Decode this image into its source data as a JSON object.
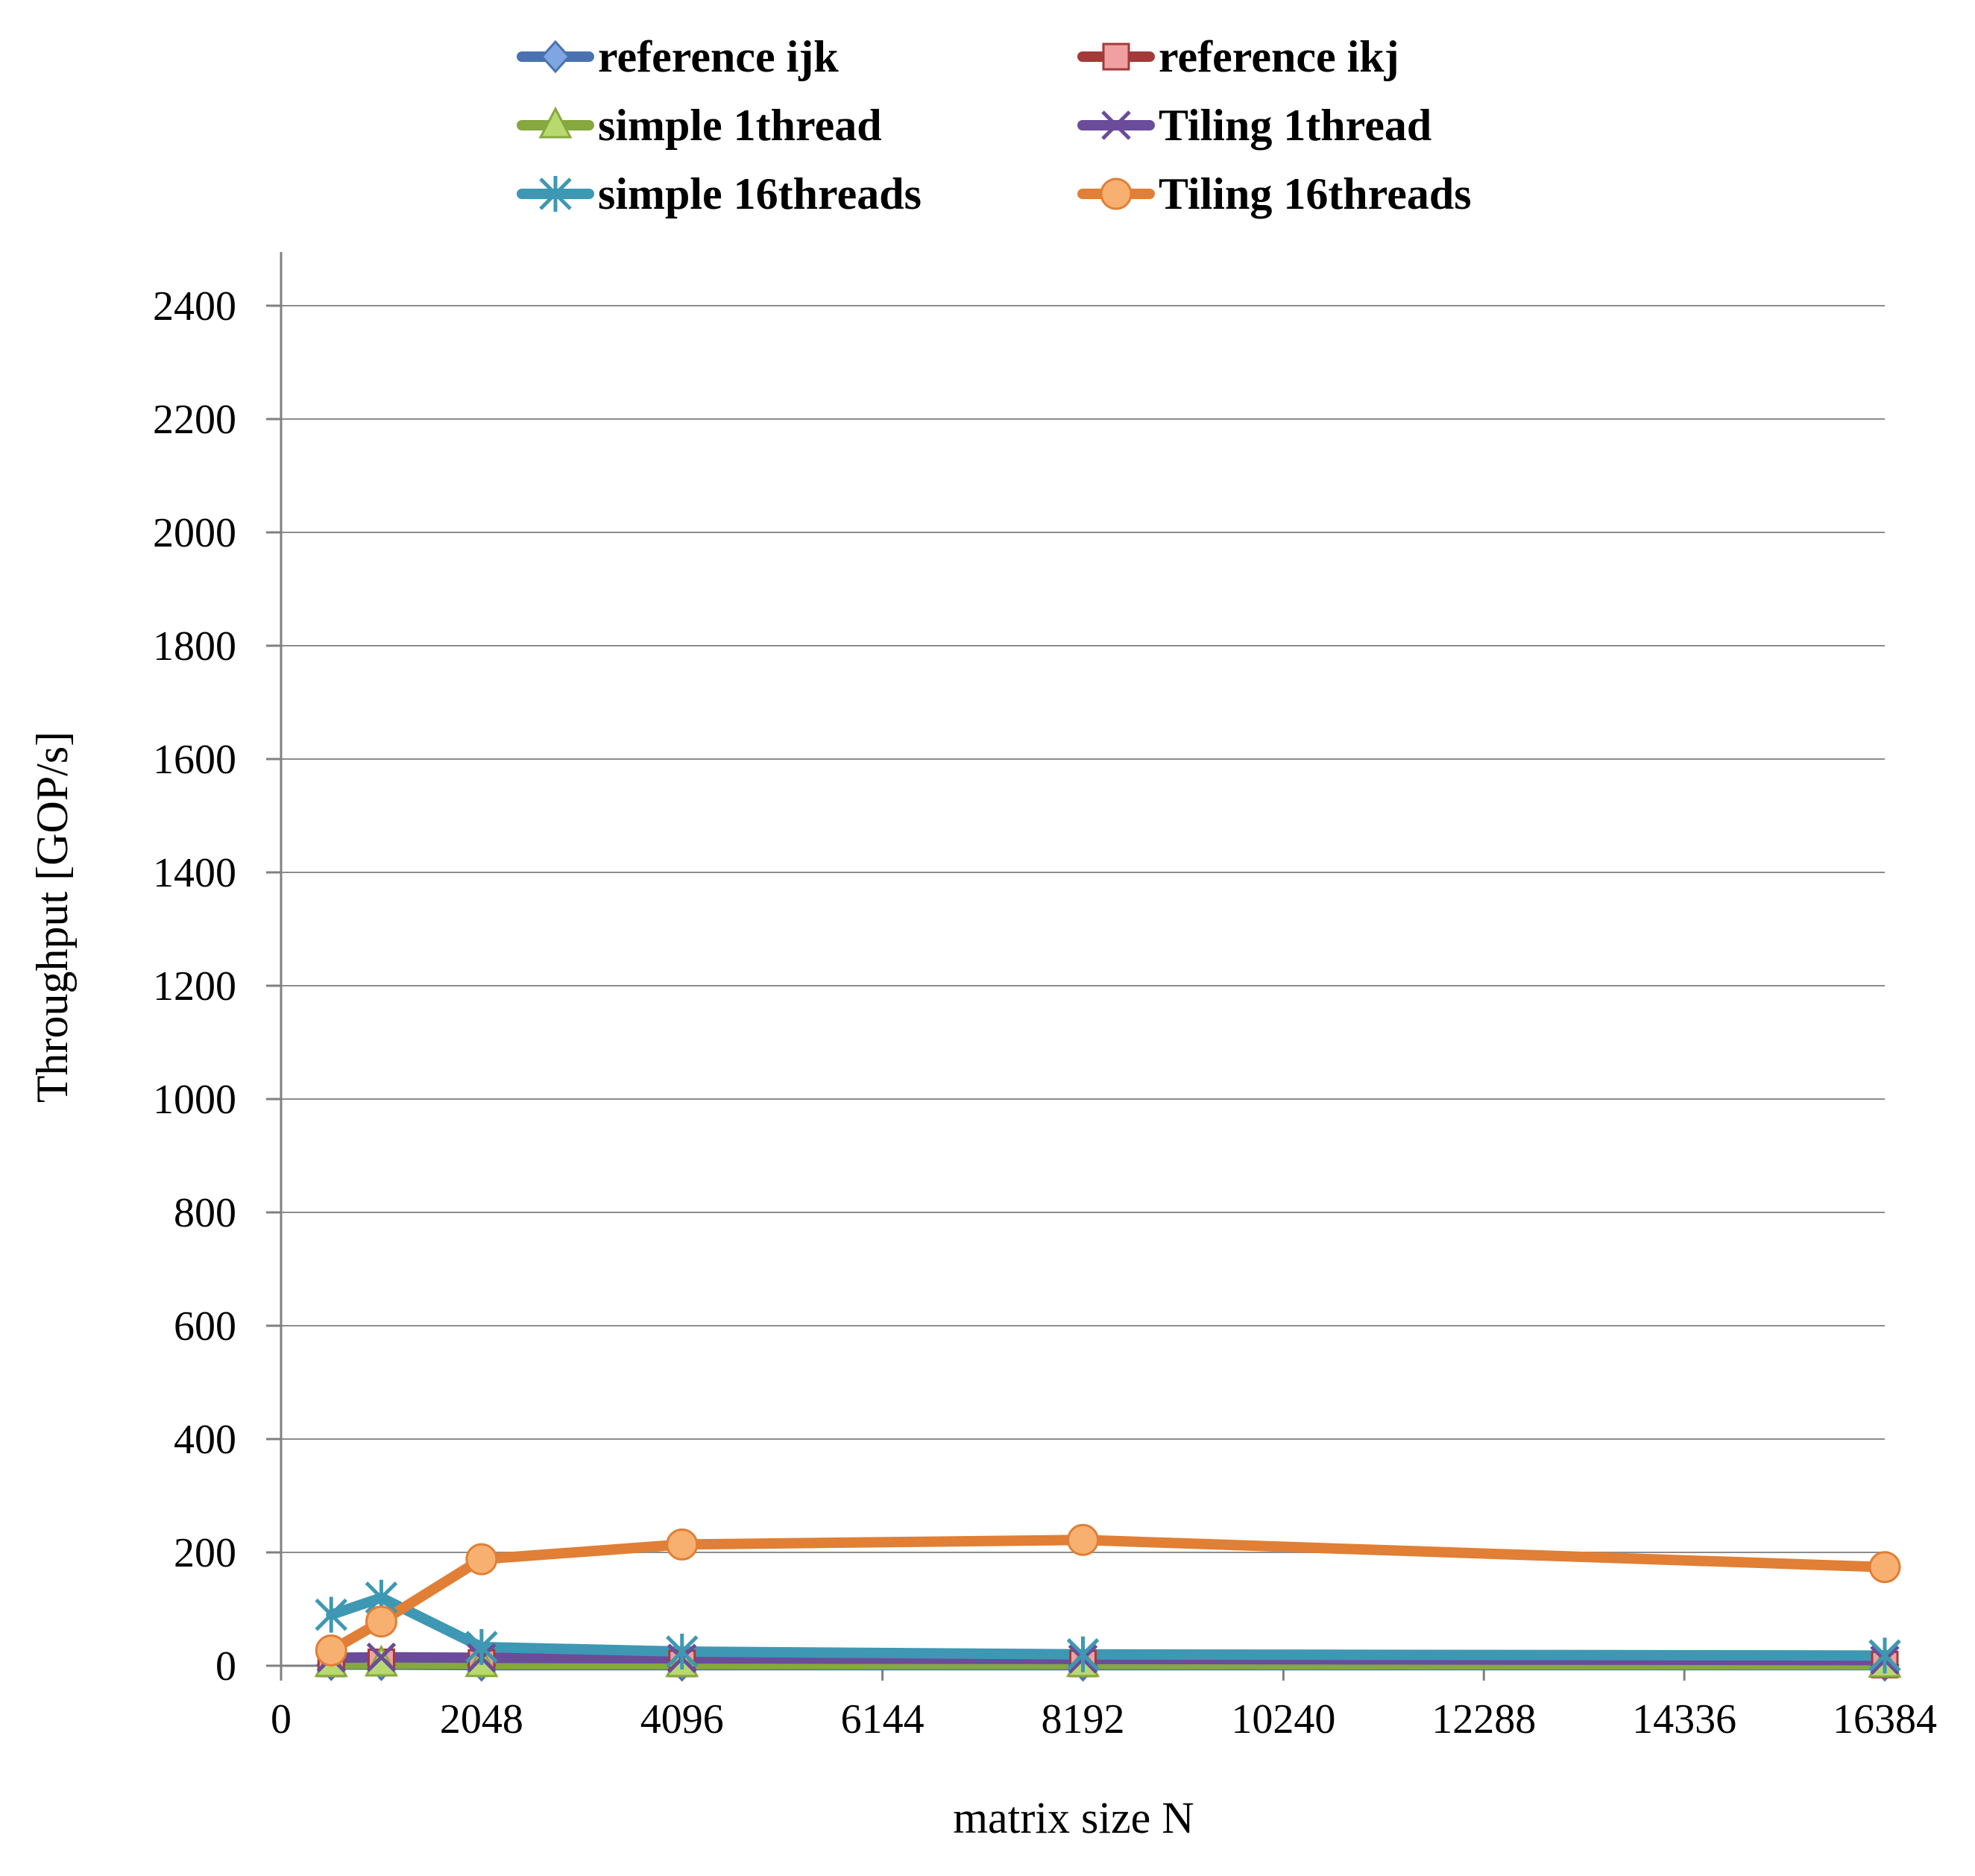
{
  "chart_data": {
    "type": "line",
    "xlabel": "matrix size N",
    "ylabel": "Throughput [GOP/s]",
    "xlim": [
      0,
      16384
    ],
    "ylim": [
      0,
      2400
    ],
    "xticks": [
      0,
      2048,
      4096,
      6144,
      8192,
      10240,
      12288,
      14336,
      16384
    ],
    "yticks": [
      0,
      200,
      400,
      600,
      800,
      1000,
      1200,
      1400,
      1600,
      1800,
      2000,
      2200,
      2400
    ],
    "grid": "horizontal",
    "legend_position": "top",
    "x": [
      512,
      1024,
      2048,
      4096,
      8192,
      16384
    ],
    "series": [
      {
        "name": "reference ijk",
        "values": [
          2,
          2,
          1,
          1,
          1,
          1
        ],
        "color": "#4a72b0",
        "marker": "diamond",
        "marker_fill": "#7fa6e0"
      },
      {
        "name": "reference ikj",
        "values": [
          4,
          6,
          5,
          4,
          4,
          2
        ],
        "color": "#a33a3a",
        "marker": "square",
        "marker_fill": "#f0a0a0"
      },
      {
        "name": "simple 1thread",
        "values": [
          3,
          4,
          3,
          3,
          3,
          2
        ],
        "color": "#86a83e",
        "marker": "triangle",
        "marker_fill": "#b8d870"
      },
      {
        "name": "Tiling 1thread",
        "values": [
          14,
          15,
          14,
          13,
          12,
          10
        ],
        "color": "#6b4c9a",
        "marker": "x",
        "marker_fill": "#6b4c9a"
      },
      {
        "name": "simple 16threads",
        "values": [
          90,
          120,
          33,
          25,
          20,
          18
        ],
        "color": "#3e98b3",
        "marker": "asterisk",
        "marker_fill": "#3e98b3"
      },
      {
        "name": "Tiling 16threads",
        "values": [
          27,
          78,
          188,
          214,
          222,
          174
        ],
        "color": "#e07f35",
        "marker": "circle",
        "marker_fill": "#f7b070"
      }
    ]
  }
}
